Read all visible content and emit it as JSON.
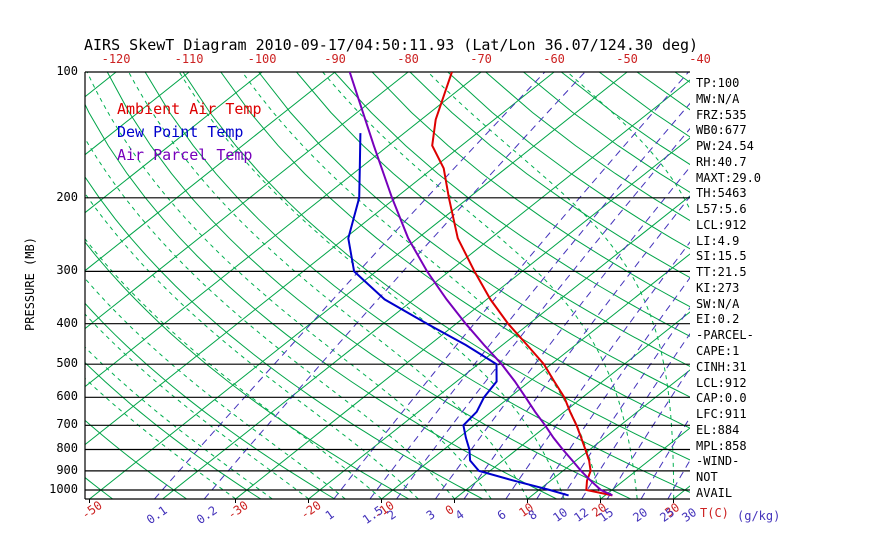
{
  "title": "AIRS SkewT Diagram 2010-09-17/04:50:11.93 (Lat/Lon 36.07/124.30 deg)",
  "legend": {
    "ambient_label": "Ambient Air Temp",
    "dewpoint_label": "Dew Point Temp",
    "parcel_label": "Air Parcel Temp"
  },
  "axes": {
    "pressure_axis_label": "PRESSURE (MB)",
    "temp_unit_label": "T(C)",
    "mixing_unit_label": "(g/kg)",
    "pressure_ticks": [
      100,
      200,
      300,
      400,
      500,
      600,
      700,
      800,
      900,
      1000
    ],
    "top_temp_ticks": [
      -120,
      -110,
      -100,
      -90,
      -80,
      -70,
      -60,
      -50,
      -40
    ],
    "bottom_temp_ticks": [
      -50,
      -30,
      -20,
      -10,
      0,
      10,
      20,
      30
    ],
    "mixing_ratio_ticks": [
      0.1,
      0.2,
      1,
      1.5,
      2,
      3,
      4,
      6,
      8,
      10,
      12,
      15,
      20,
      25,
      30
    ]
  },
  "stats_panel": [
    "TP:100",
    "MW:N/A",
    "FRZ:535",
    "WB0:677",
    "PW:24.54",
    "RH:40.7",
    "MAXT:29.0",
    "TH:5463",
    "L57:5.6",
    "LCL:912",
    "LI:4.9",
    "SI:15.5",
    "TT:21.5",
    "KI:273",
    "SW:N/A",
    "EI:0.2",
    "-PARCEL-",
    "CAPE:1",
    "CINH:31",
    "LCL:912",
    "CAP:0.0",
    "LFC:911",
    "EL:884",
    "MPL:858",
    "-WIND-",
    "NOT",
    "AVAIL"
  ],
  "colors": {
    "ambient": "#dd0000",
    "dewpoint": "#0000cc",
    "parcel": "#7700bb",
    "isotherm": "#00a448",
    "adiabat": "#00a448",
    "moist_adiabat": "#00b050",
    "mixing_ratio": "#4433bb",
    "axis": "#000000",
    "tick_red": "#cc2222"
  },
  "chart_data": {
    "type": "line",
    "subtype": "skewt",
    "title": "AIRS SkewT Diagram 2010-09-17/04:50:11.93 (Lat/Lon 36.07/124.30 deg)",
    "xlabel": "T(C)",
    "ylabel": "PRESSURE (MB)",
    "x2label": "(g/kg)",
    "pressure_range_mb": [
      100,
      1050
    ],
    "pressure_scale": "log",
    "grid": "skewt-background",
    "legend_position": "top-left-inside",
    "isotherms_c": [
      -120,
      -110,
      -100,
      -90,
      -80,
      -70,
      -60,
      -50,
      -40,
      -30,
      -20,
      -10,
      0,
      10,
      20,
      30
    ],
    "dry_adiabats_c": [
      -60,
      -50,
      -40,
      -30,
      -20,
      -10,
      0,
      10,
      20,
      30,
      40,
      50,
      60,
      70,
      80,
      90,
      100,
      110,
      120,
      130,
      140,
      150,
      160,
      170,
      180,
      190,
      200
    ],
    "moist_adiabats_start_c": [
      -30,
      -25,
      -20,
      -15,
      -10,
      -5,
      0,
      5,
      10,
      15,
      20,
      25,
      30,
      35,
      40,
      45
    ],
    "mixing_ratio_g_kg": [
      0.1,
      0.2,
      1,
      1.5,
      2,
      3,
      4,
      6,
      8,
      10,
      12,
      15,
      20,
      25,
      30
    ],
    "series": [
      {
        "name": "Ambient Air Temp",
        "color_key": "ambient",
        "units": [
          "mb",
          "C"
        ],
        "points": [
          [
            1030,
            21
          ],
          [
            1000,
            16.5
          ],
          [
            950,
            15
          ],
          [
            900,
            13.8
          ],
          [
            850,
            11.8
          ],
          [
            800,
            9.4
          ],
          [
            750,
            6.8
          ],
          [
            700,
            4.0
          ],
          [
            650,
            0.8
          ],
          [
            600,
            -2.5
          ],
          [
            550,
            -6.6
          ],
          [
            500,
            -11.0
          ],
          [
            450,
            -16.6
          ],
          [
            400,
            -22.9
          ],
          [
            350,
            -29.5
          ],
          [
            300,
            -36.5
          ],
          [
            250,
            -44.5
          ],
          [
            200,
            -52.7
          ],
          [
            170,
            -58.5
          ],
          [
            150,
            -64
          ],
          [
            130,
            -68
          ],
          [
            100,
            -74
          ]
        ]
      },
      {
        "name": "Dew Point Temp",
        "color_key": "dewpoint",
        "units": [
          "mb",
          "C"
        ],
        "points": [
          [
            1030,
            15
          ],
          [
            1000,
            11.5
          ],
          [
            950,
            5
          ],
          [
            900,
            -1.5
          ],
          [
            850,
            -4.5
          ],
          [
            800,
            -6.5
          ],
          [
            750,
            -9
          ],
          [
            700,
            -11.5
          ],
          [
            650,
            -12
          ],
          [
            600,
            -13.5
          ],
          [
            550,
            -14.5
          ],
          [
            500,
            -17.5
          ],
          [
            450,
            -25
          ],
          [
            400,
            -34
          ],
          [
            350,
            -44
          ],
          [
            300,
            -53
          ],
          [
            250,
            -59.5
          ],
          [
            200,
            -65
          ],
          [
            170,
            -70
          ],
          [
            140,
            -76
          ]
        ]
      },
      {
        "name": "Air Parcel Temp",
        "color_key": "parcel",
        "units": [
          "mb",
          "C"
        ],
        "points": [
          [
            1030,
            21
          ],
          [
            1000,
            18.5
          ],
          [
            950,
            15.5
          ],
          [
            900,
            12.5
          ],
          [
            850,
            9.5
          ],
          [
            800,
            6.3
          ],
          [
            750,
            3
          ],
          [
            700,
            -0.3
          ],
          [
            650,
            -4
          ],
          [
            600,
            -7.8
          ],
          [
            550,
            -12
          ],
          [
            500,
            -16.8
          ],
          [
            450,
            -22.5
          ],
          [
            400,
            -28.7
          ],
          [
            350,
            -35.5
          ],
          [
            300,
            -43
          ],
          [
            250,
            -51.3
          ],
          [
            200,
            -60.5
          ],
          [
            150,
            -72
          ],
          [
            100,
            -88
          ]
        ]
      }
    ]
  }
}
